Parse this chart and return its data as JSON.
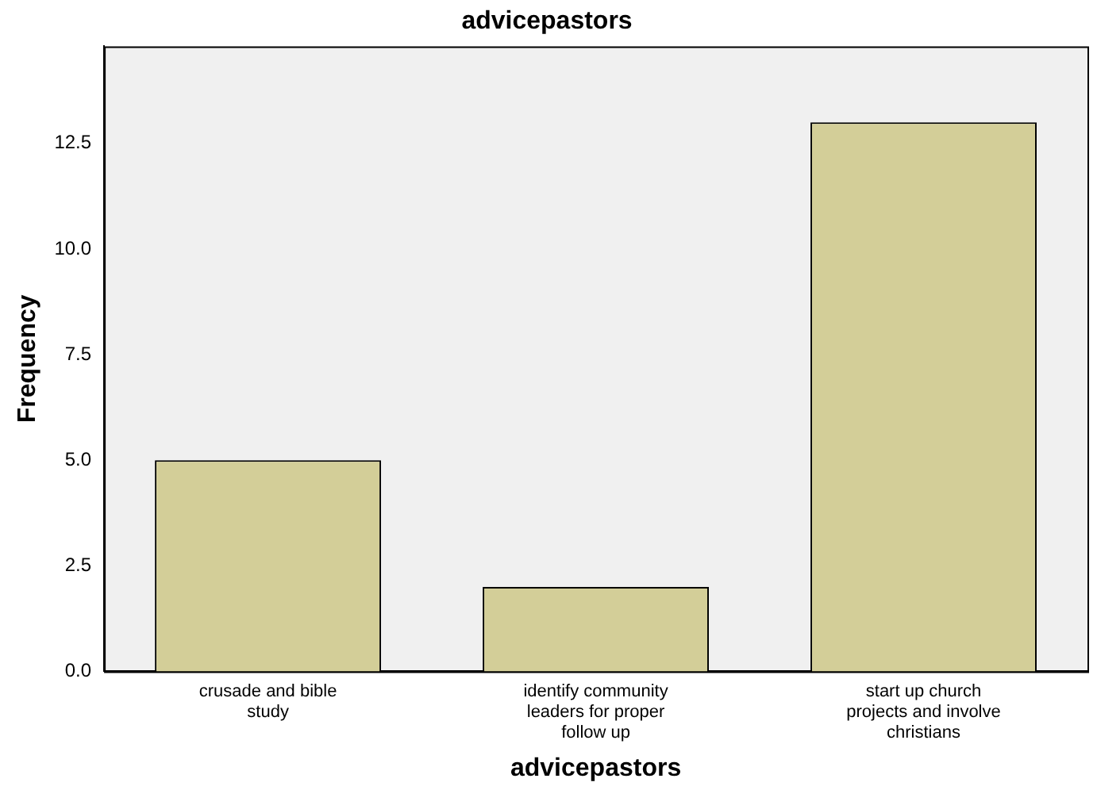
{
  "chart_data": {
    "type": "bar",
    "title": "advicepastors",
    "xlabel": "advicepastors",
    "ylabel": "Frequency",
    "categories": [
      "crusade and bible study",
      "identify community leaders for proper follow up",
      "start up church projects and involve christians"
    ],
    "values": [
      5,
      2,
      13
    ],
    "color": "#d3ce98",
    "ylim": [
      0,
      14.8
    ],
    "yticks": [
      {
        "value": 0,
        "label": "0.0"
      },
      2.5,
      {
        "value": 5,
        "label": "5.0"
      },
      7.5,
      {
        "value": 10,
        "label": "10.0"
      },
      12.5
    ],
    "grid": false,
    "legend": false
  }
}
